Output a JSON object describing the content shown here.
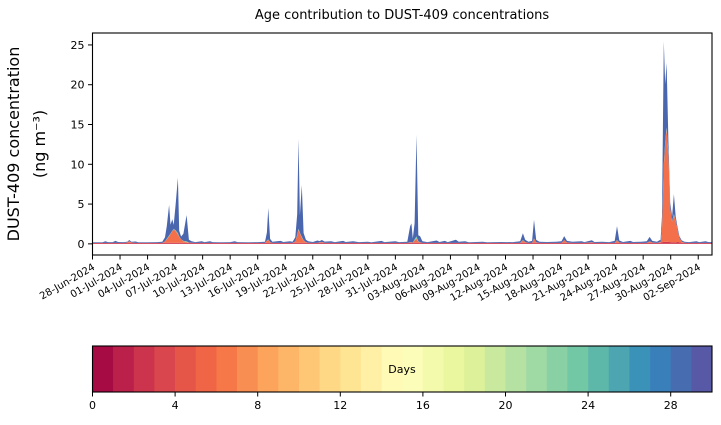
{
  "figure": {
    "background": "#ffffff"
  },
  "chart_data": {
    "type": "area",
    "stacked": true,
    "title": "Age contribution to DUST-409 concentrations",
    "ylabel": "DUST-409 concentration (ng m⁻³)",
    "ylabel_lines": [
      "DUST-409 concentration",
      "(ng m⁻³)"
    ],
    "xlabel": "",
    "x_unit": "days since 28-Jun-2024 00:00",
    "x_domain": [
      0,
      67.5
    ],
    "ylim": [
      -1.4,
      26.5
    ],
    "yticks": [
      0,
      5,
      10,
      15,
      20,
      25
    ],
    "xticks": {
      "days": [
        0,
        3,
        6,
        9,
        12,
        15,
        18,
        21,
        24,
        27,
        30,
        33,
        36,
        39,
        42,
        45,
        48,
        51,
        54,
        57,
        60,
        63,
        66
      ],
      "labels": [
        "28-Jun-2024",
        "01-Jul-2024",
        "04-Jul-2024",
        "07-Jul-2024",
        "10-Jul-2024",
        "13-Jul-2024",
        "16-Jul-2024",
        "19-Jul-2024",
        "22-Jul-2024",
        "25-Jul-2024",
        "28-Jul-2024",
        "31-Jul-2024",
        "03-Aug-2024",
        "06-Aug-2024",
        "09-Aug-2024",
        "12-Aug-2024",
        "15-Aug-2024",
        "18-Aug-2024",
        "21-Aug-2024",
        "24-Aug-2024",
        "27-Aug-2024",
        "30-Aug-2024",
        "02-Sep-2024"
      ]
    },
    "layers": [
      {
        "name": "age-0-3-days",
        "color": "#cf3a4f"
      },
      {
        "name": "age-4-9-days",
        "color": "#f4704a"
      },
      {
        "name": "age-20-26-days",
        "color": "#7fcca5"
      },
      {
        "name": "age-27-30-days",
        "color": "#4a66ae"
      }
    ],
    "points_format": [
      "day_offset",
      "age-0-3-days",
      "age-4-9-days",
      "age-20-26-days",
      "age-27-30-days"
    ],
    "points": [
      [
        0,
        0.12,
        0,
        0,
        0.08
      ],
      [
        1.1,
        0.12,
        0,
        0,
        0.08
      ],
      [
        1.4,
        0.12,
        0,
        0,
        0.22
      ],
      [
        1.7,
        0.12,
        0,
        0,
        0.1
      ],
      [
        2.2,
        0.12,
        0,
        0,
        0.1
      ],
      [
        2.5,
        0.12,
        0,
        0,
        0.25
      ],
      [
        2.8,
        0.12,
        0,
        0,
        0.12
      ],
      [
        3.3,
        0.12,
        0,
        0,
        0.1
      ],
      [
        3.8,
        0.12,
        0.05,
        0,
        0.1
      ],
      [
        4.0,
        0.14,
        0.22,
        0,
        0.12
      ],
      [
        4.25,
        0.12,
        0.05,
        0,
        0.1
      ],
      [
        4.7,
        0.12,
        0,
        0,
        0.18
      ],
      [
        5.0,
        0.12,
        0,
        0,
        0.08
      ],
      [
        6.0,
        0.12,
        0,
        0,
        0.08
      ],
      [
        7.0,
        0.12,
        0,
        0,
        0.1
      ],
      [
        7.6,
        0.12,
        0,
        0,
        0.15
      ],
      [
        7.9,
        0.13,
        0.2,
        0,
        0.5
      ],
      [
        8.1,
        0.14,
        0.45,
        0.05,
        1.6
      ],
      [
        8.35,
        0.15,
        0.8,
        0.1,
        3.85
      ],
      [
        8.5,
        0.15,
        1.1,
        0.05,
        1.1
      ],
      [
        8.7,
        0.15,
        1.45,
        0.05,
        1.45
      ],
      [
        8.85,
        0.15,
        1.7,
        0.03,
        0.5
      ],
      [
        9.05,
        0.15,
        1.45,
        0.1,
        3.2
      ],
      [
        9.3,
        0.15,
        1.05,
        0.15,
        6.95
      ],
      [
        9.45,
        0.14,
        0.75,
        0.05,
        0.7
      ],
      [
        9.65,
        0.13,
        0.45,
        0,
        0.35
      ],
      [
        9.9,
        0.12,
        0.2,
        0.05,
        0.9
      ],
      [
        10.25,
        0.12,
        0.1,
        0.1,
        3.3
      ],
      [
        10.5,
        0.12,
        0.05,
        0,
        0.35
      ],
      [
        10.8,
        0.12,
        0.02,
        0,
        0.2
      ],
      [
        11.2,
        0.12,
        0,
        0,
        0.1
      ],
      [
        11.9,
        0.12,
        0,
        0,
        0.22
      ],
      [
        12.2,
        0.12,
        0,
        0,
        0.1
      ],
      [
        12.8,
        0.12,
        0,
        0,
        0.2
      ],
      [
        13.1,
        0.12,
        0,
        0,
        0.1
      ],
      [
        14.0,
        0.12,
        0,
        0,
        0.08
      ],
      [
        15.0,
        0.12,
        0,
        0,
        0.1
      ],
      [
        15.5,
        0.12,
        0,
        0,
        0.2
      ],
      [
        15.8,
        0.12,
        0,
        0,
        0.1
      ],
      [
        17.0,
        0.12,
        0,
        0,
        0.08
      ],
      [
        18.0,
        0.12,
        0,
        0,
        0.1
      ],
      [
        18.8,
        0.12,
        0,
        0,
        0.15
      ],
      [
        19.0,
        0.13,
        0.3,
        0,
        1.0
      ],
      [
        19.15,
        0.13,
        0.35,
        0.08,
        3.95
      ],
      [
        19.35,
        0.12,
        0.1,
        0,
        0.4
      ],
      [
        19.6,
        0.12,
        0,
        0,
        0.15
      ],
      [
        20.5,
        0.12,
        0,
        0,
        0.25
      ],
      [
        20.8,
        0.12,
        0,
        0,
        0.12
      ],
      [
        21.5,
        0.12,
        0,
        0,
        0.2
      ],
      [
        21.8,
        0.12,
        0,
        0,
        0.15
      ],
      [
        22.1,
        0.13,
        0.2,
        0,
        0.5
      ],
      [
        22.3,
        0.14,
        0.9,
        0.1,
        2.6
      ],
      [
        22.45,
        0.15,
        1.6,
        0.15,
        11.3
      ],
      [
        22.6,
        0.14,
        1.2,
        0.05,
        2.2
      ],
      [
        22.8,
        0.13,
        0.65,
        0.1,
        6.5
      ],
      [
        23.0,
        0.12,
        0.3,
        0.05,
        0.9
      ],
      [
        23.25,
        0.12,
        0.1,
        0,
        0.3
      ],
      [
        23.5,
        0.12,
        0.02,
        0,
        0.2
      ],
      [
        24.0,
        0.12,
        0,
        0,
        0.12
      ],
      [
        24.5,
        0.12,
        0,
        0,
        0.3
      ],
      [
        24.75,
        0.12,
        0.08,
        0,
        0.15
      ],
      [
        25.0,
        0.12,
        0.12,
        0,
        0.25
      ],
      [
        25.3,
        0.12,
        0.02,
        0,
        0.15
      ],
      [
        26.0,
        0.12,
        0,
        0,
        0.2
      ],
      [
        26.4,
        0.12,
        0,
        0,
        0.1
      ],
      [
        27.3,
        0.12,
        0,
        0,
        0.25
      ],
      [
        27.6,
        0.12,
        0,
        0,
        0.12
      ],
      [
        28.4,
        0.12,
        0,
        0,
        0.2
      ],
      [
        29.0,
        0.12,
        0,
        0,
        0.1
      ],
      [
        30.0,
        0.12,
        0,
        0,
        0.15
      ],
      [
        30.4,
        0.12,
        0,
        0,
        0.08
      ],
      [
        31.5,
        0.12,
        0,
        0,
        0.25
      ],
      [
        31.8,
        0.12,
        0,
        0,
        0.1
      ],
      [
        33.0,
        0.12,
        0,
        0,
        0.2
      ],
      [
        33.4,
        0.12,
        0,
        0,
        0.1
      ],
      [
        34.3,
        0.12,
        0,
        0,
        0.15
      ],
      [
        34.6,
        0.12,
        0.08,
        0,
        2.0
      ],
      [
        34.75,
        0.12,
        0.1,
        0,
        2.35
      ],
      [
        34.9,
        0.12,
        0.05,
        0,
        0.5
      ],
      [
        35.1,
        0.13,
        0.3,
        0.15,
        2.0
      ],
      [
        35.3,
        0.14,
        0.5,
        0.3,
        12.75
      ],
      [
        35.5,
        0.12,
        0.15,
        0.05,
        0.75
      ],
      [
        35.7,
        0.12,
        0.08,
        0,
        0.75
      ],
      [
        35.95,
        0.12,
        0,
        0,
        0.2
      ],
      [
        36.5,
        0.12,
        0,
        0,
        0.1
      ],
      [
        37.5,
        0.12,
        0,
        0,
        0.3
      ],
      [
        37.8,
        0.12,
        0,
        0,
        0.12
      ],
      [
        38.4,
        0.12,
        0,
        0,
        0.25
      ],
      [
        38.7,
        0.12,
        0,
        0,
        0.1
      ],
      [
        39.6,
        0.12,
        0,
        0,
        0.4
      ],
      [
        39.9,
        0.12,
        0,
        0,
        0.15
      ],
      [
        40.6,
        0.12,
        0,
        0,
        0.2
      ],
      [
        41.0,
        0.12,
        0,
        0,
        0.08
      ],
      [
        42.5,
        0.12,
        0,
        0,
        0.15
      ],
      [
        43.0,
        0.12,
        0,
        0,
        0.08
      ],
      [
        44.5,
        0.12,
        0,
        0,
        0.12
      ],
      [
        45.8,
        0.12,
        0,
        0,
        0.1
      ],
      [
        46.6,
        0.12,
        0,
        0,
        0.2
      ],
      [
        46.9,
        0.14,
        0.3,
        0.05,
        0.85
      ],
      [
        47.15,
        0.12,
        0.1,
        0,
        0.3
      ],
      [
        47.5,
        0.12,
        0,
        0,
        0.15
      ],
      [
        47.9,
        0.12,
        0,
        0,
        0.25
      ],
      [
        48.1,
        0.13,
        0.5,
        0.05,
        2.35
      ],
      [
        48.35,
        0.12,
        0.08,
        0,
        0.3
      ],
      [
        48.7,
        0.12,
        0,
        0,
        0.15
      ],
      [
        49.5,
        0.12,
        0,
        0,
        0.12
      ],
      [
        50.5,
        0.12,
        0,
        0,
        0.15
      ],
      [
        51.1,
        0.12,
        0,
        0,
        0.2
      ],
      [
        51.4,
        0.13,
        0.35,
        0,
        0.5
      ],
      [
        51.7,
        0.12,
        0.05,
        0,
        0.2
      ],
      [
        52.3,
        0.12,
        0,
        0,
        0.15
      ],
      [
        53.3,
        0.12,
        0,
        0,
        0.22
      ],
      [
        53.6,
        0.12,
        0,
        0,
        0.1
      ],
      [
        54.4,
        0.12,
        0.08,
        0,
        0.25
      ],
      [
        54.7,
        0.12,
        0,
        0,
        0.12
      ],
      [
        55.5,
        0.12,
        0,
        0,
        0.15
      ],
      [
        56.3,
        0.12,
        0,
        0,
        0.1
      ],
      [
        56.9,
        0.12,
        0,
        0,
        0.25
      ],
      [
        57.15,
        0.13,
        0.3,
        0.05,
        1.75
      ],
      [
        57.4,
        0.12,
        0.05,
        0,
        0.25
      ],
      [
        57.8,
        0.12,
        0,
        0,
        0.12
      ],
      [
        58.6,
        0.12,
        0,
        0,
        0.25
      ],
      [
        58.9,
        0.12,
        0,
        0,
        0.12
      ],
      [
        59.8,
        0.12,
        0,
        0,
        0.15
      ],
      [
        60.4,
        0.12,
        0,
        0,
        0.2
      ],
      [
        60.7,
        0.12,
        0.2,
        0,
        0.55
      ],
      [
        61.0,
        0.12,
        0.05,
        0,
        0.2
      ],
      [
        61.5,
        0.12,
        0,
        0,
        0.15
      ],
      [
        61.9,
        0.13,
        0.1,
        0,
        0.3
      ],
      [
        62.05,
        0.2,
        1.6,
        0.1,
        1.6
      ],
      [
        62.25,
        0.25,
        9.5,
        0.3,
        15.4
      ],
      [
        62.4,
        0.25,
        12.5,
        0.1,
        7.2
      ],
      [
        62.55,
        0.25,
        14.2,
        0.2,
        8.1
      ],
      [
        62.75,
        0.25,
        11.0,
        0.1,
        1.6
      ],
      [
        62.95,
        0.22,
        4.2,
        0.05,
        0.7
      ],
      [
        63.15,
        0.2,
        2.6,
        0.05,
        0.6
      ],
      [
        63.35,
        0.2,
        3.4,
        0.15,
        2.5
      ],
      [
        63.55,
        0.18,
        2.7,
        0.05,
        0.5
      ],
      [
        63.75,
        0.25,
        1.5,
        0,
        0.3
      ],
      [
        63.95,
        0.2,
        0.55,
        0,
        0.2
      ],
      [
        64.2,
        0.14,
        0.15,
        0,
        0.15
      ],
      [
        64.5,
        0.12,
        0.03,
        0,
        0.12
      ],
      [
        65.0,
        0.12,
        0,
        0,
        0.1
      ],
      [
        65.8,
        0.12,
        0,
        0,
        0.2
      ],
      [
        66.1,
        0.12,
        0,
        0,
        0.1
      ],
      [
        66.8,
        0.12,
        0,
        0,
        0.22
      ],
      [
        67.1,
        0.12,
        0,
        0,
        0.12
      ],
      [
        67.5,
        0.12,
        0,
        0,
        0.1
      ]
    ],
    "colorbar": {
      "label": "Days",
      "range": [
        0,
        30
      ],
      "ticks": [
        0,
        4,
        8,
        12,
        16,
        20,
        24,
        28
      ],
      "segments": 30,
      "colormap": "Spectral",
      "stops": [
        [
          0.0,
          "#9e0142"
        ],
        [
          0.1,
          "#d53e4f"
        ],
        [
          0.2,
          "#f46d43"
        ],
        [
          0.3,
          "#fdae61"
        ],
        [
          0.4,
          "#fee08b"
        ],
        [
          0.5,
          "#ffffbf"
        ],
        [
          0.6,
          "#e6f598"
        ],
        [
          0.7,
          "#abdda4"
        ],
        [
          0.8,
          "#66c2a5"
        ],
        [
          0.9,
          "#3288bd"
        ],
        [
          1.0,
          "#5e4fa2"
        ]
      ]
    }
  }
}
